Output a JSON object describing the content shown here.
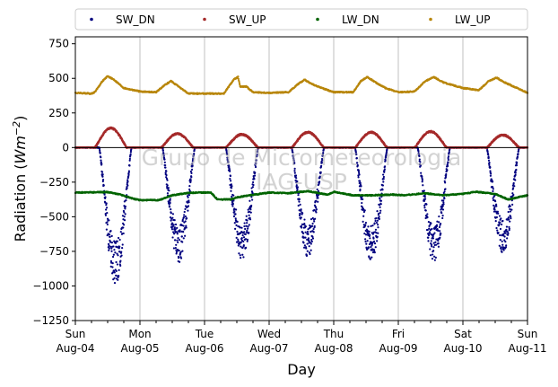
{
  "chart_data": {
    "type": "scatter",
    "xlabel": "Day",
    "ylabel": "Radiation (Wm⁻²)",
    "ylabel_main": "Radiation (",
    "ylabel_unit": "Wm",
    "ylabel_exp": "−2",
    "ylabel_close": ")",
    "ylim": [
      -1250,
      800
    ],
    "xlim": [
      0,
      7
    ],
    "yticks": [
      -1250,
      -1000,
      -750,
      -500,
      -250,
      0,
      250,
      500,
      750
    ],
    "ytick_labels": [
      "−1250",
      "−1000",
      "−750",
      "−500",
      "−250",
      "0",
      "250",
      "500",
      "750"
    ],
    "xticks": [
      {
        "x": 0,
        "day": "Sun",
        "date": "Aug-04"
      },
      {
        "x": 1,
        "day": "Mon",
        "date": "Aug-05"
      },
      {
        "x": 2,
        "day": "Tue",
        "date": "Aug-06"
      },
      {
        "x": 3,
        "day": "Wed",
        "date": "Aug-07"
      },
      {
        "x": 4,
        "day": "Thu",
        "date": "Aug-08"
      },
      {
        "x": 5,
        "day": "Fri",
        "date": "Aug-09"
      },
      {
        "x": 6,
        "day": "Sat",
        "date": "Aug-10"
      },
      {
        "x": 7,
        "day": "Sun",
        "date": "Aug-11"
      }
    ],
    "grid": "vertical",
    "legend_position": "top",
    "watermark": [
      "Grupo de Micrometeorologia",
      "IAG-USP"
    ],
    "series": [
      {
        "name": "SW_DN",
        "color": "#00007f",
        "daily_peak": [
          -900,
          -760,
          -740,
          -720,
          -750,
          -760,
          -700
        ],
        "noon_offset": [
          0.62,
          0.6,
          0.58,
          0.6,
          0.58,
          0.55,
          0.62
        ]
      },
      {
        "name": "SW_UP",
        "color": "#a52a2a",
        "daily_peak": [
          140,
          100,
          95,
          110,
          110,
          115,
          90
        ],
        "noon_offset": [
          0.55,
          0.58,
          0.58,
          0.6,
          0.58,
          0.5,
          0.62
        ]
      },
      {
        "name": "LW_DN",
        "color": "#006400",
        "points": [
          [
            0.0,
            -325
          ],
          [
            0.5,
            -322
          ],
          [
            0.7,
            -340
          ],
          [
            0.9,
            -370
          ],
          [
            1.0,
            -380
          ],
          [
            1.3,
            -380
          ],
          [
            1.5,
            -345
          ],
          [
            1.7,
            -330
          ],
          [
            1.9,
            -325
          ],
          [
            2.1,
            -325
          ],
          [
            2.2,
            -375
          ],
          [
            2.4,
            -375
          ],
          [
            2.5,
            -360
          ],
          [
            2.7,
            -345
          ],
          [
            3.0,
            -325
          ],
          [
            3.3,
            -330
          ],
          [
            3.6,
            -315
          ],
          [
            3.9,
            -340
          ],
          [
            4.0,
            -320
          ],
          [
            4.3,
            -345
          ],
          [
            4.6,
            -345
          ],
          [
            4.9,
            -340
          ],
          [
            5.1,
            -345
          ],
          [
            5.4,
            -330
          ],
          [
            5.7,
            -345
          ],
          [
            6.0,
            -335
          ],
          [
            6.2,
            -320
          ],
          [
            6.5,
            -335
          ],
          [
            6.7,
            -375
          ],
          [
            7.0,
            -345
          ]
        ]
      },
      {
        "name": "LW_UP",
        "color": "#b8860b",
        "points": [
          [
            0.0,
            395
          ],
          [
            0.25,
            390
          ],
          [
            0.3,
            400
          ],
          [
            0.42,
            480
          ],
          [
            0.5,
            515
          ],
          [
            0.6,
            490
          ],
          [
            0.75,
            430
          ],
          [
            1.0,
            405
          ],
          [
            1.25,
            400
          ],
          [
            1.38,
            450
          ],
          [
            1.48,
            480
          ],
          [
            1.6,
            440
          ],
          [
            1.75,
            390
          ],
          [
            2.0,
            390
          ],
          [
            2.3,
            390
          ],
          [
            2.45,
            490
          ],
          [
            2.52,
            510
          ],
          [
            2.55,
            440
          ],
          [
            2.65,
            440
          ],
          [
            2.75,
            400
          ],
          [
            3.0,
            395
          ],
          [
            3.3,
            400
          ],
          [
            3.45,
            460
          ],
          [
            3.55,
            490
          ],
          [
            3.7,
            450
          ],
          [
            4.0,
            400
          ],
          [
            4.3,
            400
          ],
          [
            4.42,
            480
          ],
          [
            4.52,
            510
          ],
          [
            4.65,
            470
          ],
          [
            4.8,
            430
          ],
          [
            5.0,
            400
          ],
          [
            5.25,
            405
          ],
          [
            5.42,
            480
          ],
          [
            5.55,
            510
          ],
          [
            5.7,
            470
          ],
          [
            6.0,
            430
          ],
          [
            6.25,
            415
          ],
          [
            6.4,
            480
          ],
          [
            6.52,
            505
          ],
          [
            6.65,
            470
          ],
          [
            7.0,
            395
          ]
        ]
      }
    ]
  }
}
